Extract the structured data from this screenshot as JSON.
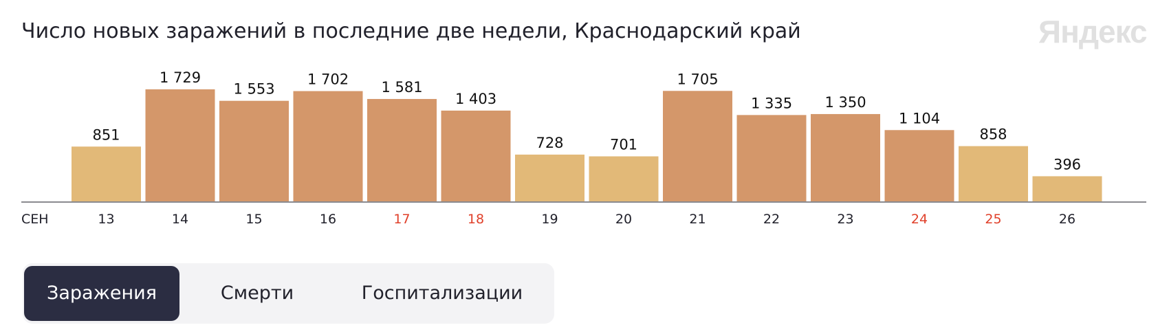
{
  "title": "Число новых заражений в последние две недели, Краснодарский край",
  "logo": "Яндекс",
  "tabs": [
    "Заражения",
    "Смерти",
    "Госпитализации"
  ],
  "active_tab": 0,
  "colors": {
    "weekday_bar": "#d4976a",
    "weekend_bar": "#e2b978",
    "axis": "#8a8a8f",
    "weekday_label": "#21212b",
    "weekend_label": "#e0402a"
  },
  "chart_data": {
    "type": "bar",
    "title": "Число новых заражений в последние две недели, Краснодарский край",
    "month_label": "СЕН",
    "categories": [
      "13",
      "14",
      "15",
      "16",
      "17",
      "18",
      "19",
      "20",
      "21",
      "22",
      "23",
      "24",
      "25",
      "26"
    ],
    "values": [
      851,
      1729,
      1553,
      1702,
      1581,
      1403,
      728,
      701,
      1705,
      1335,
      1350,
      1104,
      858,
      396
    ],
    "value_labels": [
      "851",
      "1 729",
      "1 553",
      "1 702",
      "1 581",
      "1 403",
      "728",
      "701",
      "1 705",
      "1 335",
      "1 350",
      "1 104",
      "858",
      "396"
    ],
    "bar_kind": [
      "weekend",
      "weekday",
      "weekday",
      "weekday",
      "weekday",
      "weekday",
      "weekend",
      "weekend",
      "weekday",
      "weekday",
      "weekday",
      "weekday",
      "weekend",
      "weekend"
    ],
    "label_highlight": [
      false,
      false,
      false,
      false,
      true,
      true,
      false,
      false,
      false,
      false,
      false,
      true,
      true,
      false
    ],
    "ylim": [
      0,
      1729
    ],
    "grid": false,
    "xlabel": "",
    "ylabel": ""
  }
}
